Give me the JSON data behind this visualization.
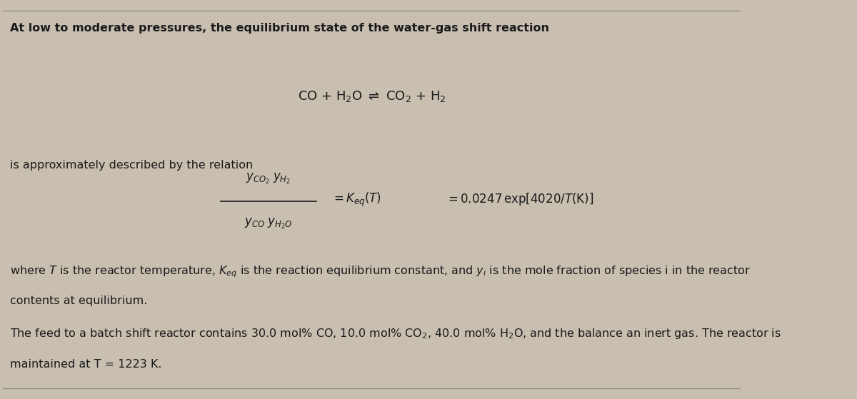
{
  "background_color": "#c8bfb0",
  "fig_width": 12.0,
  "fig_height": 5.59,
  "title_text": "At low to moderate pressures, the equilibrium state of the water-gas shift reaction",
  "reaction_eq": "CO + H$_2$O $\\rightleftharpoons$ CO$_2$ + H$_2$",
  "relation_text": "is approximately described by the relation",
  "fraction_numerator": "$y_{CO_2}\\; y_{H_2}$",
  "fraction_denominator": "$y_{CO}\\; y_{H_2O}$",
  "equals_keq": "$= K_{eq}\\left(T\\right)$",
  "equals_exp": "$= 0.0247\\,\\exp\\!\\left[4020/T\\left(\\mathrm{K}\\right)\\right]$",
  "where_text": "where $T$ is the reactor temperature, $K_{eq}$ is the reaction equilibrium constant, and $y_i$ is the mole fraction of species i in the reactor",
  "where_text2": "contents at equilibrium.",
  "feed_text": "The feed to a batch shift reactor contains 30.0 mol% CO, 10.0 mol% CO$_2$, 40.0 mol% H$_2$O, and the balance an inert gas. The reactor is",
  "feed_text2": "maintained at T = 1223 K.",
  "text_color": "#1a1a1a",
  "font_size_main": 11.5,
  "font_size_reaction": 13,
  "font_size_formula": 12
}
